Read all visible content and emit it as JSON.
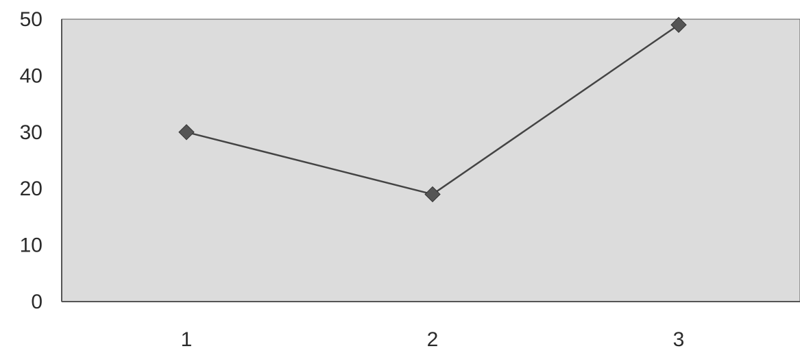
{
  "chart_data": {
    "type": "line",
    "title": "",
    "xlabel": "",
    "ylabel": "",
    "categories": [
      "1",
      "2",
      "3"
    ],
    "series": [
      {
        "values": [
          30,
          19,
          49
        ]
      }
    ],
    "ylim": [
      0,
      50
    ],
    "yticks": [
      "0",
      "10",
      "20",
      "30",
      "40",
      "50"
    ],
    "grid": false,
    "legend": "none",
    "colors": {
      "plot_background": "#dcdcdc",
      "line": "#444444",
      "marker": "#555555",
      "axis": "#555555",
      "text": "#2b2b2b"
    }
  }
}
